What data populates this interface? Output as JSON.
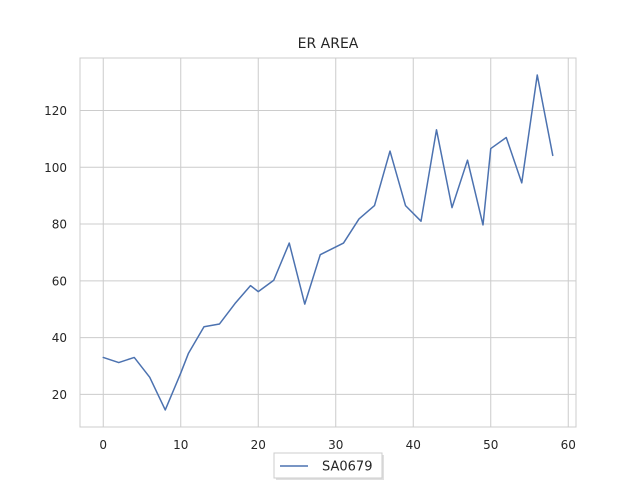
{
  "chart_data": {
    "type": "line",
    "title": "ER AREA",
    "xlabel": "",
    "ylabel": "",
    "xlim": [
      -3,
      61
    ],
    "ylim": [
      8.5,
      138.5
    ],
    "xticks": [
      0,
      10,
      20,
      30,
      40,
      50,
      60
    ],
    "yticks": [
      20,
      40,
      60,
      80,
      100,
      120
    ],
    "grid": true,
    "legend_position": "bottom-center",
    "series": [
      {
        "name": "SA0679",
        "color": "#4c72b0",
        "x": [
          0,
          2,
          4,
          6,
          8,
          10,
          11,
          13,
          15,
          17,
          19,
          20,
          22,
          24,
          26,
          28,
          31,
          33,
          35,
          37,
          39,
          41,
          43,
          45,
          47,
          49,
          50,
          52,
          54,
          56,
          58
        ],
        "y": [
          33,
          31.2,
          33,
          26,
          14.5,
          27.5,
          34.5,
          43.8,
          44.8,
          52,
          58.3,
          56.2,
          60.2,
          73.3,
          51.8,
          69.2,
          73.3,
          81.8,
          86.5,
          105.7,
          86.5,
          81,
          113.2,
          85.8,
          102.5,
          79.7,
          106.6,
          110.5,
          94.5,
          132.5,
          104.2
        ]
      }
    ]
  }
}
